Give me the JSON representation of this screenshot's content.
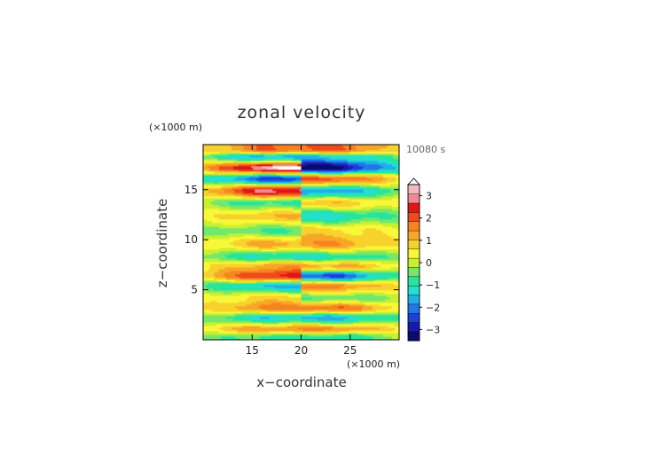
{
  "chart_data": {
    "type": "heatmap",
    "title": "zonal velocity",
    "xlabel": "x−coordinate",
    "ylabel": "z−coordinate",
    "x_units": "(×1000 m)",
    "y_units": "(×1000 m)",
    "time_label": "10080 s",
    "xlim": [
      10,
      30
    ],
    "ylim": [
      0,
      19.5
    ],
    "x_ticks": [
      15,
      20,
      25
    ],
    "x_tick_labels": [
      "15",
      "20",
      "25"
    ],
    "y_ticks": [
      5,
      10,
      15
    ],
    "y_tick_labels": [
      "5",
      "10",
      "15"
    ],
    "colorbar": {
      "ticks": [
        3,
        2,
        1,
        0,
        -1,
        -2,
        -3
      ],
      "tick_labels": [
        "3",
        "2",
        "1",
        "0",
        "−1",
        "−2",
        "−3"
      ],
      "range": [
        -3.5,
        3.5
      ]
    },
    "field_bands": [
      {
        "z": 19.0,
        "left": 1.8,
        "right": 1.9
      },
      {
        "z": 18.3,
        "left": -1.6,
        "right": -1.4
      },
      {
        "z": 17.2,
        "left": 3.3,
        "right": -3.3
      },
      {
        "z": 16.1,
        "left": -2.4,
        "right": 2.0
      },
      {
        "z": 14.9,
        "left": 2.8,
        "right": -1.8
      },
      {
        "z": 13.7,
        "left": -0.8,
        "right": 0.9
      },
      {
        "z": 12.4,
        "left": 1.0,
        "right": -1.2
      },
      {
        "z": 10.9,
        "left": -0.6,
        "right": 0.8
      },
      {
        "z": 9.6,
        "left": 1.2,
        "right": 1.4
      },
      {
        "z": 8.3,
        "left": -1.1,
        "right": -1.0
      },
      {
        "z": 7.4,
        "left": 1.3,
        "right": 1.2
      },
      {
        "z": 6.4,
        "left": 2.4,
        "right": -2.3
      },
      {
        "z": 5.4,
        "left": -1.5,
        "right": 1.6
      },
      {
        "z": 4.2,
        "left": 0.8,
        "right": -0.5
      },
      {
        "z": 3.2,
        "left": 1.6,
        "right": 1.8
      },
      {
        "z": 2.2,
        "left": -1.3,
        "right": -1.6
      },
      {
        "z": 1.1,
        "left": 1.4,
        "right": 1.5
      },
      {
        "z": 0.3,
        "left": -0.8,
        "right": -0.9
      }
    ]
  },
  "colors": {
    "scale": [
      "#0b0b6e",
      "#1a1aa8",
      "#1e3fd8",
      "#1f78e8",
      "#21b0e6",
      "#23e0d0",
      "#27e59a",
      "#74e86a",
      "#c8f032",
      "#f8f838",
      "#f8d22c",
      "#f7a726",
      "#f58420",
      "#ef4a1c",
      "#e01616",
      "#f08a92",
      "#f7b8be"
    ],
    "max_highlight": "#ffffff"
  }
}
